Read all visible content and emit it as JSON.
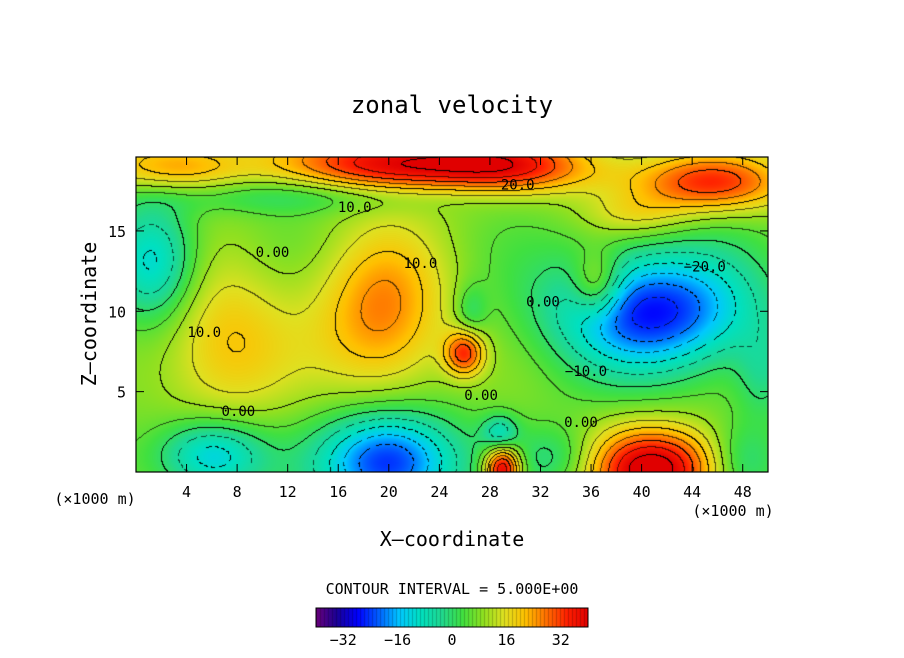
{
  "chart_data": {
    "type": "heatmap",
    "title": "zonal velocity",
    "xlabel": "X–coordinate",
    "ylabel": "Z–coordinate",
    "x_unit_label": "(×1000 m)",
    "y_unit_label": "(×1000 m)",
    "xlim": [
      0,
      50
    ],
    "ylim": [
      0,
      19.6
    ],
    "x_ticks": [
      4,
      8,
      12,
      16,
      20,
      24,
      28,
      32,
      36,
      40,
      44,
      48
    ],
    "x_tick_labels": [
      "4",
      "8",
      "12",
      "16",
      "20",
      "24",
      "28",
      "32",
      "36",
      "40",
      "44",
      "48"
    ],
    "y_ticks": [
      5,
      10,
      15
    ],
    "y_tick_labels": [
      "5",
      "10",
      "15"
    ],
    "contour_interval_text": "CONTOUR INTERVAL = 5.000E+00",
    "contour_interval": 5,
    "colorbar": {
      "range": [
        -40,
        40
      ],
      "ticks": [
        -32,
        -16,
        0,
        16,
        32
      ],
      "tick_labels": [
        "−32",
        "−16",
        "0",
        "16",
        "32"
      ],
      "colors": [
        "#6a007a",
        "#1a0096",
        "#0000ff",
        "#0060ff",
        "#00c8ff",
        "#00e0c0",
        "#20d890",
        "#40e040",
        "#90e020",
        "#e0e020",
        "#ffc000",
        "#ff7000",
        "#ff2000",
        "#e00000"
      ]
    },
    "contour_labels": [
      {
        "text": "20.0",
        "x": 30.2,
        "y": 17.9
      },
      {
        "text": "10.0",
        "x": 17.3,
        "y": 16.5
      },
      {
        "text": "0.00",
        "x": 10.8,
        "y": 13.7
      },
      {
        "text": "10.0",
        "x": 22.5,
        "y": 13.0
      },
      {
        "text": "−20.0",
        "x": 45.0,
        "y": 12.8
      },
      {
        "text": "0.00",
        "x": 32.2,
        "y": 10.6
      },
      {
        "text": "10.0",
        "x": 5.4,
        "y": 8.7
      },
      {
        "text": "−10.0",
        "x": 35.6,
        "y": 6.3
      },
      {
        "text": "0.00",
        "x": 8.1,
        "y": 3.8
      },
      {
        "text": "0.00",
        "x": 27.3,
        "y": 4.8
      },
      {
        "text": "0.00",
        "x": 35.2,
        "y": 3.1
      }
    ],
    "features": [
      {
        "kind": "max",
        "x": 20.0,
        "y": 19.2,
        "value": 30,
        "sx": 6.0,
        "sy": 1.4
      },
      {
        "kind": "max",
        "x": 30.0,
        "y": 19.0,
        "value": 24,
        "sx": 5.0,
        "sy": 1.3
      },
      {
        "kind": "max",
        "x": 45.5,
        "y": 18.0,
        "value": 26,
        "sx": 4.5,
        "sy": 1.3
      },
      {
        "kind": "max",
        "x": 3.0,
        "y": 19.0,
        "value": 18,
        "sx": 4.0,
        "sy": 1.2
      },
      {
        "kind": "min",
        "x": 15.0,
        "y": 17.2,
        "value": -10,
        "sx": 10.0,
        "sy": 0.8
      },
      {
        "kind": "min",
        "x": 1.5,
        "y": 13.0,
        "value": -20,
        "sx": 2.4,
        "sy": 2.6
      },
      {
        "kind": "min",
        "x": 41.0,
        "y": 10.0,
        "value": -34,
        "sx": 5.5,
        "sy": 2.6
      },
      {
        "kind": "max",
        "x": 19.5,
        "y": 9.8,
        "value": 20,
        "sx": 3.6,
        "sy": 3.6
      },
      {
        "kind": "max",
        "x": 26.0,
        "y": 7.4,
        "value": 24,
        "sx": 1.1,
        "sy": 1.0
      },
      {
        "kind": "max",
        "x": 7.0,
        "y": 8.0,
        "value": 14,
        "sx": 3.8,
        "sy": 3.5
      },
      {
        "kind": "max",
        "x": 36.5,
        "y": 11.6,
        "value": 16,
        "sx": 1.4,
        "sy": 1.4
      },
      {
        "kind": "min",
        "x": 20.0,
        "y": 0.6,
        "value": -34,
        "sx": 3.8,
        "sy": 2.2
      },
      {
        "kind": "min",
        "x": 6.0,
        "y": 1.0,
        "value": -22,
        "sx": 3.0,
        "sy": 1.6
      },
      {
        "kind": "min",
        "x": 28.8,
        "y": 2.4,
        "value": -14,
        "sx": 1.0,
        "sy": 0.8
      },
      {
        "kind": "max",
        "x": 29.0,
        "y": 0.2,
        "value": 36,
        "sx": 1.0,
        "sy": 1.0
      },
      {
        "kind": "max",
        "x": 41.0,
        "y": 0.2,
        "value": 36,
        "sx": 3.8,
        "sy": 1.8
      },
      {
        "kind": "min",
        "x": 33.5,
        "y": 0.8,
        "value": -10,
        "sx": 2.4,
        "sy": 1.4
      },
      {
        "kind": "min",
        "x": 48.0,
        "y": 0.6,
        "value": -10,
        "sx": 2.0,
        "sy": 1.6
      },
      {
        "kind": "min",
        "x": 26.5,
        "y": 10.0,
        "value": -8,
        "sx": 0.9,
        "sy": 1.2
      },
      {
        "kind": "min",
        "x": 49.5,
        "y": 6.0,
        "value": -8,
        "sx": 1.5,
        "sy": 2.0
      },
      {
        "kind": "max",
        "x": 39.5,
        "y": 16.0,
        "value": 8,
        "sx": 3.0,
        "sy": 1.0
      }
    ]
  }
}
